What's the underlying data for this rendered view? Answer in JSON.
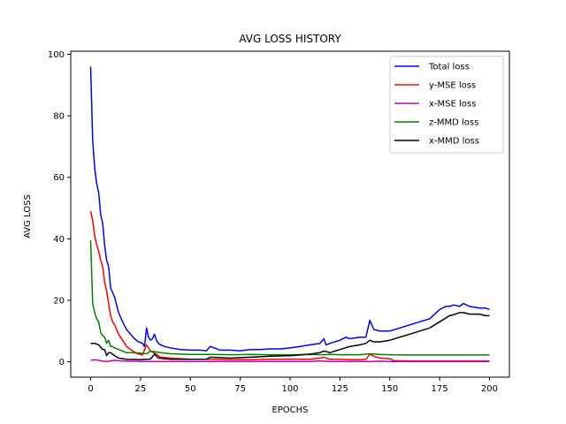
{
  "chart_data": {
    "type": "line",
    "title": "AVG LOSS HISTORY",
    "xlabel": "EPOCHS",
    "ylabel": "AVG LOSS",
    "xlim": [
      -10,
      210
    ],
    "ylim": [
      -5,
      101
    ],
    "xticks": [
      0,
      25,
      50,
      75,
      100,
      125,
      150,
      175,
      200
    ],
    "yticks": [
      0,
      20,
      40,
      60,
      80,
      100
    ],
    "grid": false,
    "legend_position": "top-right",
    "series": [
      {
        "name": "Total loss",
        "color": "#0000ff",
        "x": [
          0,
          1,
          2,
          3,
          4,
          5,
          6,
          7,
          8,
          9,
          10,
          12,
          14,
          16,
          18,
          20,
          22,
          24,
          26,
          27,
          28,
          29,
          30,
          31,
          32,
          33,
          34,
          35,
          37,
          40,
          45,
          50,
          55,
          58,
          60,
          65,
          70,
          75,
          80,
          85,
          90,
          95,
          100,
          105,
          110,
          115,
          117,
          118,
          120,
          125,
          128,
          130,
          135,
          138,
          140,
          142,
          145,
          150,
          155,
          160,
          165,
          170,
          175,
          178,
          180,
          182,
          185,
          187,
          190,
          195,
          198,
          200
        ],
        "y": [
          96,
          72,
          63,
          58,
          55,
          48,
          45,
          38,
          33,
          31,
          24,
          21,
          16,
          13,
          10.5,
          9,
          7.5,
          6.5,
          6,
          5,
          11,
          8,
          7,
          7.5,
          9,
          7,
          6,
          5.5,
          5,
          4.5,
          4,
          3.8,
          3.8,
          3.6,
          5,
          3.8,
          3.8,
          3.6,
          4,
          4,
          4.2,
          4.2,
          4.5,
          5,
          5.5,
          6,
          7.5,
          5.5,
          6,
          7,
          8,
          7.5,
          8,
          8,
          13.5,
          10.5,
          10,
          10,
          11,
          12,
          13,
          14,
          17,
          18,
          18,
          18.5,
          18,
          19,
          18,
          17.5,
          17.5,
          17
        ]
      },
      {
        "name": "y-MSE loss",
        "color": "#ff0000",
        "x": [
          0,
          1,
          2,
          3,
          4,
          5,
          6,
          7,
          8,
          9,
          10,
          11,
          12,
          14,
          16,
          18,
          20,
          22,
          24,
          26,
          28,
          30,
          32,
          35,
          40,
          50,
          60,
          70,
          80,
          90,
          100,
          110,
          115,
          117,
          120,
          125,
          130,
          135,
          138,
          140,
          142,
          145,
          150,
          152,
          160,
          170,
          180,
          190,
          200
        ],
        "y": [
          49,
          46,
          41,
          38,
          36,
          33,
          31,
          26,
          23,
          19,
          15,
          13,
          12,
          9,
          7,
          5,
          4,
          3.2,
          2.5,
          2.2,
          5.5,
          3.5,
          2.8,
          1.5,
          1.2,
          0.8,
          0.8,
          0.7,
          0.7,
          0.8,
          0.9,
          0.8,
          1.2,
          1.5,
          0.8,
          0.8,
          0.7,
          0.7,
          0.8,
          2.5,
          1.8,
          1.2,
          1.0,
          0.4,
          0.3,
          0.3,
          0.3,
          0.3,
          0.3
        ]
      },
      {
        "name": "x-MSE loss",
        "color": "#bf00bf",
        "x": [
          0,
          2,
          4,
          6,
          8,
          10,
          12,
          15,
          20,
          25,
          30,
          40,
          50,
          60,
          70,
          80,
          90,
          100,
          110,
          115,
          120,
          130,
          140,
          145,
          150,
          160,
          170,
          180,
          190,
          200
        ],
        "y": [
          0.5,
          0.7,
          0.5,
          0.2,
          0.1,
          0.3,
          0.5,
          0.3,
          0.2,
          0.1,
          0.1,
          0.1,
          0.1,
          0.1,
          0.1,
          0.1,
          0.1,
          0.1,
          0.1,
          0.3,
          0.1,
          0.1,
          0.1,
          0.2,
          0.1,
          0.1,
          0.1,
          0.1,
          0.1,
          0.1
        ]
      },
      {
        "name": "z-MMD loss",
        "color": "#008000",
        "x": [
          0,
          1,
          2,
          3,
          4,
          5,
          6,
          7,
          8,
          9,
          10,
          11,
          12,
          14,
          16,
          18,
          20,
          25,
          28,
          30,
          35,
          40,
          50,
          60,
          70,
          80,
          90,
          100,
          110,
          115,
          120,
          125,
          130,
          135,
          140,
          145,
          150,
          160,
          170,
          180,
          190,
          200
        ],
        "y": [
          39.5,
          19,
          16,
          14,
          13,
          9.5,
          8.5,
          8,
          6,
          7,
          5,
          5,
          4.5,
          4,
          3.5,
          3,
          3,
          2.8,
          2.6,
          3.5,
          3,
          2.6,
          2.4,
          2.4,
          2.3,
          2.4,
          2.3,
          2.3,
          2.4,
          2.3,
          2.4,
          2.3,
          2.3,
          2.3,
          2.6,
          2.4,
          2.3,
          2.2,
          2.2,
          2.2,
          2.2,
          2.2
        ]
      },
      {
        "name": "x-MMD loss",
        "color": "#000000",
        "x": [
          0,
          2,
          4,
          6,
          7,
          8,
          9,
          10,
          12,
          14,
          16,
          18,
          20,
          25,
          28,
          30,
          32,
          34,
          40,
          50,
          58,
          60,
          70,
          80,
          90,
          100,
          105,
          110,
          115,
          117,
          120,
          125,
          130,
          135,
          138,
          140,
          142,
          145,
          150,
          155,
          160,
          165,
          170,
          175,
          180,
          183,
          185,
          187,
          190,
          195,
          198,
          200
        ],
        "y": [
          6,
          6,
          5.5,
          4,
          4,
          2,
          3,
          3,
          2,
          1.2,
          1,
          0.8,
          0.8,
          0.7,
          0.8,
          0.9,
          2.5,
          1.2,
          0.8,
          0.8,
          0.8,
          1.5,
          1.2,
          1.5,
          1.8,
          2,
          2.2,
          2.5,
          3,
          3.5,
          3,
          4,
          5,
          5.5,
          6,
          7,
          6.5,
          6.5,
          7,
          8,
          9,
          10,
          11,
          13,
          15,
          15.5,
          16,
          16,
          15.5,
          15.5,
          15,
          15
        ]
      }
    ]
  }
}
